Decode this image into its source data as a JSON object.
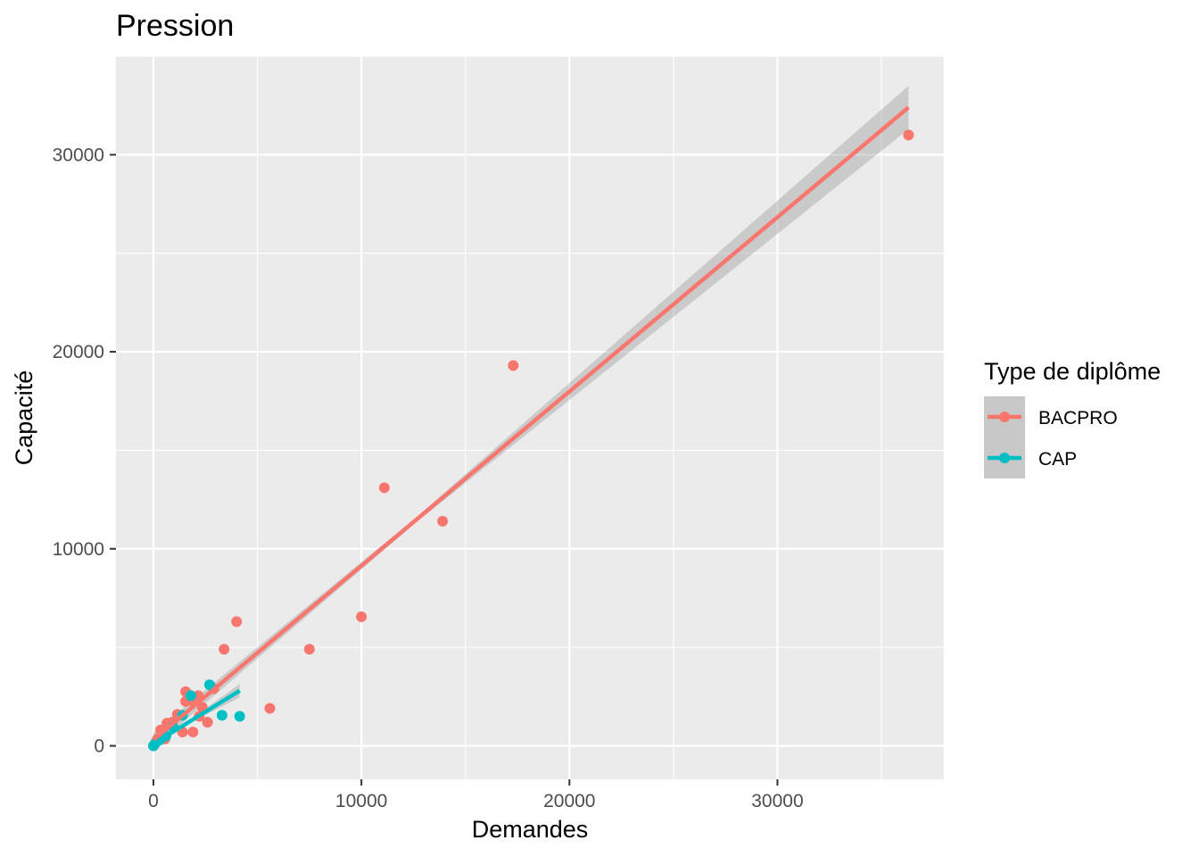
{
  "chart_data": {
    "type": "scatter",
    "title": "Pression",
    "xlabel": "Demandes",
    "ylabel": "Capacité",
    "xlim": [
      -1800,
      38000
    ],
    "ylim": [
      -1700,
      35000
    ],
    "x_ticks": [
      0,
      10000,
      20000,
      30000
    ],
    "y_ticks": [
      0,
      10000,
      20000,
      30000
    ],
    "x_tick_labels": [
      "0",
      "10000",
      "20000",
      "30000"
    ],
    "y_tick_labels": [
      "0",
      "10000",
      "20000",
      "30000"
    ],
    "grid": true,
    "legend": {
      "title": "Type de diplôme",
      "position": "right"
    },
    "series": [
      {
        "name": "BACPRO",
        "color": "#F8766D",
        "points": [
          [
            36300,
            31000
          ],
          [
            17300,
            19300
          ],
          [
            11100,
            13100
          ],
          [
            13900,
            11400
          ],
          [
            10000,
            6550
          ],
          [
            7500,
            4900
          ],
          [
            4000,
            6300
          ],
          [
            3400,
            4900
          ],
          [
            5600,
            1900
          ],
          [
            2900,
            2900
          ],
          [
            1550,
            2750
          ],
          [
            2150,
            2550
          ],
          [
            1800,
            2300
          ],
          [
            1550,
            2250
          ],
          [
            2350,
            1950
          ],
          [
            2200,
            1500
          ],
          [
            2600,
            1200
          ],
          [
            1900,
            700
          ],
          [
            1400,
            700
          ],
          [
            1150,
            1600
          ],
          [
            900,
            1200
          ],
          [
            650,
            1150
          ],
          [
            350,
            800
          ],
          [
            550,
            350
          ],
          [
            200,
            350
          ],
          [
            100,
            150
          ],
          [
            50,
            50
          ]
        ],
        "fit": {
          "x": [
            0,
            36300
          ],
          "y": [
            300,
            32400
          ],
          "se_x_end": 36300,
          "se_half_width_end": 1100
        }
      },
      {
        "name": "CAP",
        "color": "#00BFC4",
        "points": [
          [
            2700,
            3100
          ],
          [
            1800,
            2550
          ],
          [
            3300,
            1550
          ],
          [
            4150,
            1500
          ],
          [
            1400,
            1550
          ],
          [
            950,
            950
          ],
          [
            600,
            500
          ],
          [
            300,
            300
          ],
          [
            100,
            150
          ],
          [
            0,
            0
          ]
        ],
        "fit": {
          "x": [
            0,
            4150
          ],
          "y": [
            100,
            2800
          ],
          "se_x_end": 4150,
          "se_half_width_end": 350
        }
      }
    ]
  }
}
